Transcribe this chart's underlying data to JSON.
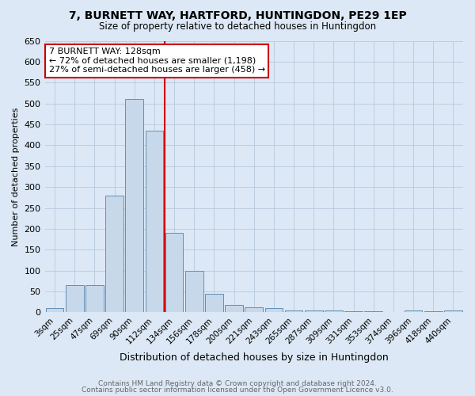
{
  "title": "7, BURNETT WAY, HARTFORD, HUNTINGDON, PE29 1EP",
  "subtitle": "Size of property relative to detached houses in Huntingdon",
  "xlabel": "Distribution of detached houses by size in Huntingdon",
  "ylabel": "Number of detached properties",
  "footnote1": "Contains HM Land Registry data © Crown copyright and database right 2024.",
  "footnote2": "Contains public sector information licensed under the Open Government Licence v3.0.",
  "annotation_line1": "7 BURNETT WAY: 128sqm",
  "annotation_line2": "← 72% of detached houses are smaller (1,198)",
  "annotation_line3": "27% of semi-detached houses are larger (458) →",
  "bar_labels": [
    "3sqm",
    "25sqm",
    "47sqm",
    "69sqm",
    "90sqm",
    "112sqm",
    "134sqm",
    "156sqm",
    "178sqm",
    "200sqm",
    "221sqm",
    "243sqm",
    "265sqm",
    "287sqm",
    "309sqm",
    "331sqm",
    "353sqm",
    "374sqm",
    "396sqm",
    "418sqm",
    "440sqm"
  ],
  "bar_values": [
    10,
    65,
    65,
    280,
    510,
    435,
    190,
    100,
    45,
    18,
    12,
    10,
    5,
    5,
    4,
    3,
    2,
    1,
    5,
    2,
    5
  ],
  "bar_color": "#c8d8eb",
  "bar_edge_color": "#6090b8",
  "vline_x": 5.5,
  "vline_color": "#cc0000",
  "ylim": [
    0,
    650
  ],
  "yticks": [
    0,
    50,
    100,
    150,
    200,
    250,
    300,
    350,
    400,
    450,
    500,
    550,
    600,
    650
  ],
  "bg_color": "#dce8f5",
  "plot_bg_color": "#dce8f5",
  "annotation_box_color": "#ffffff",
  "annotation_box_edge": "#cc0000",
  "title_fontsize": 10,
  "subtitle_fontsize": 8.5,
  "xlabel_fontsize": 9,
  "ylabel_fontsize": 8,
  "footnote_fontsize": 6.5,
  "annotation_fontsize": 8
}
